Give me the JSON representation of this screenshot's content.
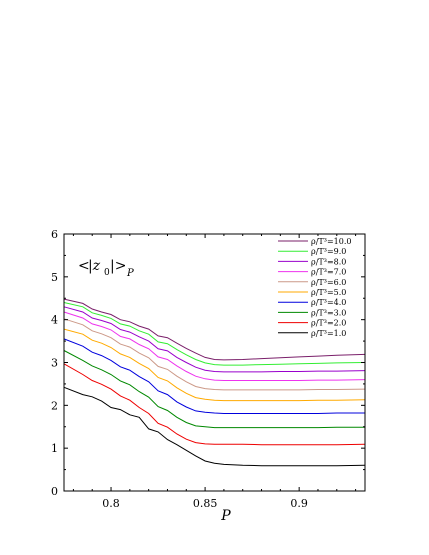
{
  "chart_data": {
    "type": "line",
    "title": "",
    "xlabel": "P",
    "ylabel": "",
    "annotation": {
      "text_open": "<",
      "text_var": "|z",
      "text_sub": "0",
      "text_close": "|>",
      "text_outer_sub": "P"
    },
    "xlim": [
      0.775,
      0.935
    ],
    "ylim": [
      0,
      6
    ],
    "xticks": [
      0.8,
      0.85,
      0.9
    ],
    "xtick_labels": [
      "0.8",
      "0.85",
      "0.9"
    ],
    "yticks": [
      0,
      1,
      2,
      3,
      4,
      5,
      6
    ],
    "ytick_labels": [
      "0",
      "1",
      "2",
      "3",
      "4",
      "5",
      "6"
    ],
    "grid": false,
    "legend_position": "top-right",
    "x": [
      0.775,
      0.785,
      0.79,
      0.795,
      0.8,
      0.805,
      0.81,
      0.815,
      0.82,
      0.825,
      0.83,
      0.835,
      0.84,
      0.845,
      0.85,
      0.855,
      0.86,
      0.87,
      0.88,
      0.89,
      0.9,
      0.91,
      0.92,
      0.935
    ],
    "series": [
      {
        "name": "ρ/T³=10.0",
        "color": "#7a1f6a",
        "values": [
          4.48,
          4.38,
          4.25,
          4.18,
          4.12,
          4.0,
          3.95,
          3.85,
          3.78,
          3.62,
          3.58,
          3.45,
          3.33,
          3.22,
          3.12,
          3.07,
          3.06,
          3.07,
          3.09,
          3.11,
          3.13,
          3.15,
          3.17,
          3.19
        ]
      },
      {
        "name": "ρ/T³=9.0",
        "color": "#33ee33",
        "values": [
          4.4,
          4.3,
          4.16,
          4.1,
          4.03,
          3.9,
          3.85,
          3.74,
          3.66,
          3.48,
          3.44,
          3.3,
          3.18,
          3.07,
          2.99,
          2.95,
          2.94,
          2.94,
          2.95,
          2.96,
          2.97,
          2.98,
          2.99,
          3.0
        ]
      },
      {
        "name": "ρ/T³=8.0",
        "color": "#9900cc",
        "values": [
          4.3,
          4.18,
          4.04,
          3.98,
          3.91,
          3.77,
          3.71,
          3.6,
          3.5,
          3.32,
          3.27,
          3.12,
          3.0,
          2.89,
          2.82,
          2.79,
          2.78,
          2.78,
          2.78,
          2.79,
          2.79,
          2.8,
          2.8,
          2.81
        ]
      },
      {
        "name": "ρ/T³=7.0",
        "color": "#ee33ee",
        "values": [
          4.18,
          4.04,
          3.9,
          3.84,
          3.76,
          3.61,
          3.55,
          3.42,
          3.32,
          3.13,
          3.07,
          2.92,
          2.79,
          2.68,
          2.62,
          2.59,
          2.58,
          2.58,
          2.58,
          2.58,
          2.58,
          2.59,
          2.59,
          2.6
        ]
      },
      {
        "name": "ρ/T³=6.0",
        "color": "#cc9988",
        "values": [
          4.02,
          3.88,
          3.74,
          3.67,
          3.58,
          3.43,
          3.36,
          3.22,
          3.11,
          2.91,
          2.84,
          2.68,
          2.55,
          2.44,
          2.39,
          2.37,
          2.36,
          2.36,
          2.36,
          2.36,
          2.36,
          2.37,
          2.37,
          2.38
        ]
      },
      {
        "name": "ρ/T³=5.0",
        "color": "#ffaa00",
        "values": [
          3.78,
          3.66,
          3.52,
          3.45,
          3.35,
          3.2,
          3.12,
          2.98,
          2.86,
          2.65,
          2.57,
          2.41,
          2.28,
          2.18,
          2.14,
          2.12,
          2.11,
          2.11,
          2.11,
          2.11,
          2.11,
          2.12,
          2.12,
          2.13
        ]
      },
      {
        "name": "ρ/T³=4.0",
        "color": "#0000dd",
        "values": [
          3.55,
          3.38,
          3.24,
          3.16,
          3.05,
          2.9,
          2.82,
          2.67,
          2.55,
          2.34,
          2.25,
          2.08,
          1.96,
          1.87,
          1.84,
          1.82,
          1.81,
          1.81,
          1.81,
          1.81,
          1.81,
          1.81,
          1.82,
          1.82
        ]
      },
      {
        "name": "ρ/T³=3.0",
        "color": "#008800",
        "values": [
          3.28,
          3.05,
          2.92,
          2.83,
          2.72,
          2.57,
          2.48,
          2.32,
          2.19,
          1.97,
          1.88,
          1.72,
          1.6,
          1.52,
          1.5,
          1.48,
          1.48,
          1.48,
          1.48,
          1.48,
          1.48,
          1.48,
          1.49,
          1.49
        ]
      },
      {
        "name": "ρ/T³=2.0",
        "color": "#ee0000",
        "values": [
          2.97,
          2.72,
          2.58,
          2.49,
          2.38,
          2.22,
          2.12,
          1.95,
          1.81,
          1.58,
          1.49,
          1.33,
          1.21,
          1.13,
          1.1,
          1.09,
          1.09,
          1.09,
          1.08,
          1.08,
          1.08,
          1.08,
          1.08,
          1.09
        ]
      },
      {
        "name": "ρ/T³=1.0",
        "color": "#000000",
        "values": [
          2.42,
          2.25,
          2.2,
          2.1,
          1.95,
          1.9,
          1.78,
          1.72,
          1.45,
          1.38,
          1.2,
          1.08,
          0.95,
          0.82,
          0.7,
          0.65,
          0.62,
          0.6,
          0.59,
          0.59,
          0.59,
          0.59,
          0.59,
          0.6
        ]
      }
    ]
  }
}
